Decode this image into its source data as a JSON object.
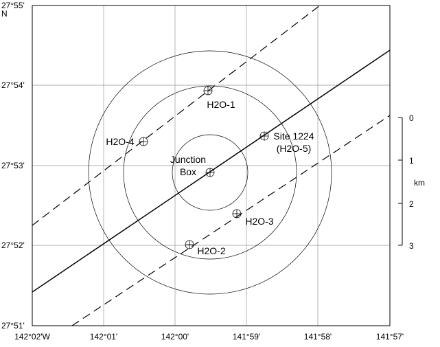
{
  "map": {
    "lat_labels": [
      "27°55'",
      "27°54'",
      "27°53'",
      "27°52'",
      "27°51'"
    ],
    "north_label": "N",
    "lon_labels": [
      "142°02'W",
      "142°01'",
      "142°00'",
      "141°59'",
      "141°58'",
      "141°57'"
    ],
    "stations": [
      {
        "label": [
          "H2O-1"
        ]
      },
      {
        "label": [
          "H2O-4"
        ]
      },
      {
        "label": [
          "Site 1224",
          "(H2O-5)"
        ]
      },
      {
        "label": [
          "Junction",
          "Box"
        ]
      },
      {
        "label": [
          "H2O-3"
        ]
      },
      {
        "label": [
          "H2O-2"
        ]
      }
    ],
    "scale": {
      "ticks": [
        "0",
        "1",
        "2",
        "3"
      ],
      "unit": "km"
    }
  }
}
